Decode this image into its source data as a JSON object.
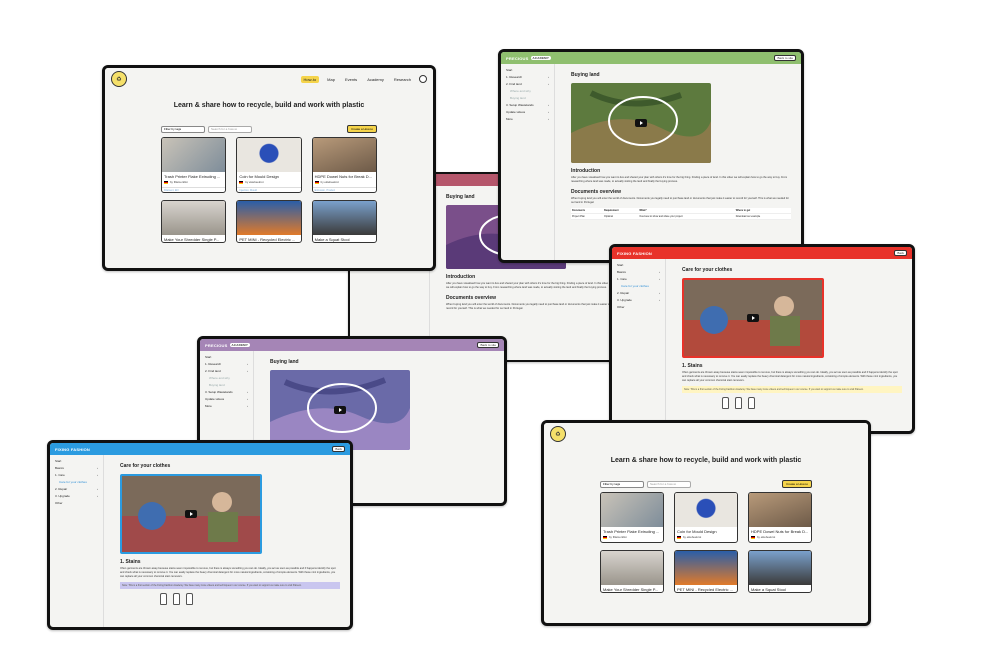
{
  "colors": {
    "green_bar": "#8fbf6f",
    "red_bar": "#e8322a",
    "purple_bar": "#a585b6",
    "blue_bar": "#2b9be0",
    "pink_bar": "#b5566b",
    "yellow_accent": "#f5d44b"
  },
  "library": {
    "headline": "Learn & share how to recycle, build and work with plastic",
    "nav": [
      "How-to",
      "Map",
      "Events",
      "Academy",
      "Research"
    ],
    "filter_label": "Filter by tags",
    "search_placeholder": "Search for a how-to",
    "create_label": "Create a How-to",
    "cards": [
      {
        "title": "Trash Printer Flake Extruding ...",
        "author": "by fillamentlist",
        "footer": "Filament, EN"
      },
      {
        "title": "Coin for Mould Design",
        "author": "by ekiebeekrot",
        "footer": "Injection, Mould"
      },
      {
        "title": "HDPE Dowel Nuts for Break D...",
        "author": "by ekiebeekrot",
        "footer": "Extrusion, Product"
      },
      {
        "title": "Make Your Shredder Single P...",
        "author": "",
        "footer": ""
      },
      {
        "title": "PET MINI - Recycled Electric ...",
        "author": "",
        "footer": ""
      },
      {
        "title": "Make a Squat Stool",
        "author": "",
        "footer": ""
      }
    ]
  },
  "buying": {
    "brand": "PRECIOUS",
    "brand_tag": "ACADEMY",
    "top_button": "Back to site",
    "title": "Buying land",
    "sidebar": [
      {
        "label": "Start",
        "kind": "item"
      },
      {
        "label": "1. Research",
        "kind": "item"
      },
      {
        "label": "2. Find land",
        "kind": "item"
      },
      {
        "label": "Where and why",
        "kind": "sub"
      },
      {
        "label": "Buying land",
        "kind": "sub"
      },
      {
        "label": "3. Setup Wastelands",
        "kind": "item"
      },
      {
        "label": "Update videos",
        "kind": "item"
      },
      {
        "label": "More",
        "kind": "item"
      }
    ],
    "intro_heading": "Introduction",
    "intro_text": "After you have visualised how you want to live and shared your plan with others it's time for the big thing. Finding a piece of land. In this video we will explain how to go the way to buy. From researching where land was made, to actually visiting the land and finally the buying process.",
    "docs_heading": "Documents overview",
    "docs_text": "When buying land you will enter the world of documents. Documents you legally need to purchase land or documents that just make it easier to record for yourself. This is what we needed for our land in Portugal.",
    "table_headers": [
      "Documents",
      "Requirement",
      "What?",
      "Where to get"
    ],
    "table_row": [
      "Project Plan",
      "Optional",
      "Overview to show and share your project",
      "Download our example"
    ]
  },
  "care": {
    "brand": "FIXING FASHION",
    "brand_tag": "ACADEMY",
    "top_button": "Back",
    "title": "Care for your clothes",
    "sidebar": [
      {
        "label": "Start",
        "kind": "item"
      },
      {
        "label": "Basics",
        "kind": "item"
      },
      {
        "label": "1. Care",
        "kind": "item"
      },
      {
        "label": "Care for your clothes",
        "kind": "active"
      },
      {
        "label": "2. Repair",
        "kind": "item"
      },
      {
        "label": "3. Upgrade",
        "kind": "item"
      },
      {
        "label": "Other",
        "kind": "item"
      }
    ],
    "section_heading": "1. Stains",
    "section_text": "Often garments are thrown away because stains seem impossible to remove, but there is always something you can do. Ideally, you act as soon as possible and if happens identify the spot and check what is necessary to remove it. You can easily replace the heavy chemical detergent for more natural ingredients, consisting of simple elements. With these mini ingredients, you can replace all your common chemical stain removers.",
    "note_text": "Note: This is a first section of the Fixing Fashion Academy. We have many more videos and techniques in our course. If you want to support us make sure to visit Patreon."
  }
}
